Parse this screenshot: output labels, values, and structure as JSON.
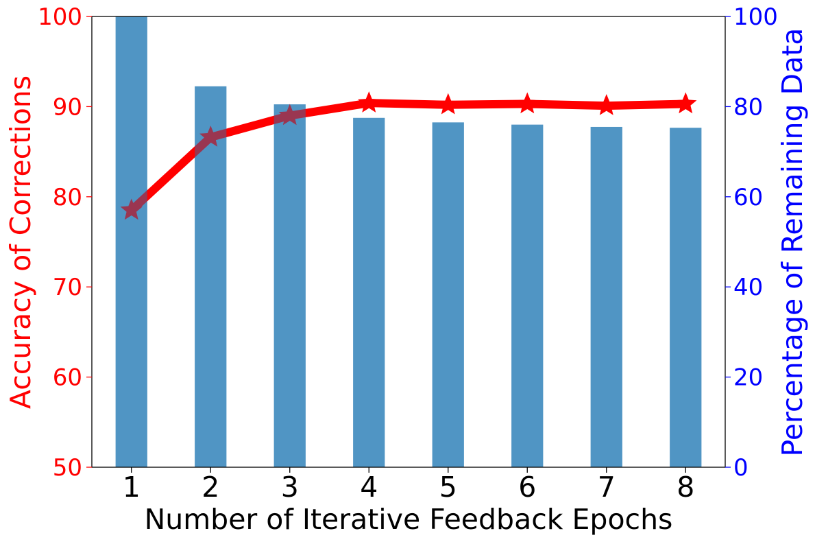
{
  "chart_data": {
    "type": "bar+line",
    "xlabel": "Number of Iterative Feedback Epochs",
    "categories": [
      "1",
      "2",
      "3",
      "4",
      "5",
      "6",
      "7",
      "8"
    ],
    "y_left": {
      "label": "Accuracy of Corrections",
      "ylim": [
        50,
        100
      ],
      "ticks": [
        "50",
        "60",
        "70",
        "80",
        "90",
        "100"
      ],
      "color": "#ff0000"
    },
    "y_right": {
      "label": "Percentage of Remaining Data",
      "ylim": [
        0,
        100
      ],
      "ticks": [
        "0",
        "20",
        "40",
        "60",
        "80",
        "100"
      ],
      "color": "#0000ff"
    },
    "bars": {
      "axis": "right",
      "color": "#1f77b4",
      "opacity": 0.6,
      "values": [
        100,
        84.5,
        80.5,
        77.5,
        76.5,
        76.0,
        75.5,
        75.3
      ]
    },
    "line": {
      "axis": "left",
      "color": "#ff0000",
      "marker": "star",
      "values": [
        78.5,
        86.6,
        89.0,
        90.4,
        90.2,
        90.3,
        90.1,
        90.3
      ]
    },
    "grid": false
  }
}
